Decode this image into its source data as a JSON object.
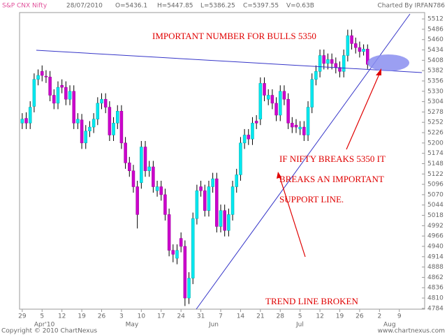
{
  "chart_data": {
    "type": "candlestick",
    "header": {
      "symbol": "S&P CNX Nifty",
      "date": "28/07/2010",
      "open": "O=5436.1",
      "high": "H=5447.85",
      "low": "L=5386.25",
      "close": "C=5397.55",
      "volume": "V=0.63B",
      "credit": "Charted By IRFAN786"
    },
    "annotations": [
      "IMPORTANT NUMBER FOR BULLS 5350",
      "IF NIFTY BREAKS 5350 IT",
      "BREAKS AN IMPORTANT",
      "SUPPORT LINE.",
      "TREND LINE BROKEN"
    ],
    "footer": {
      "left": "Copyright © 2010 ChartNexus",
      "right": "www.chartnexus.com"
    },
    "categories": [
      "29",
      null,
      null,
      null,
      null,
      "5",
      null,
      null,
      null,
      null,
      "12",
      null,
      null,
      null,
      null,
      "19",
      null,
      null,
      null,
      null,
      "26",
      null,
      null,
      null,
      null,
      "3",
      null,
      null,
      null,
      null,
      "10",
      null,
      null,
      null,
      null,
      "17",
      null,
      null,
      null,
      null,
      "24",
      null,
      null,
      null,
      null,
      "31",
      null,
      null,
      null,
      null,
      "7",
      null,
      null,
      null,
      null,
      "14",
      null,
      null,
      null,
      null,
      "21",
      null,
      null,
      null,
      null,
      "28",
      null,
      null,
      null,
      null,
      "5",
      null,
      null,
      null,
      null,
      "12",
      null,
      null,
      null,
      null,
      "19",
      null,
      null,
      null,
      null,
      "26",
      null,
      null,
      null,
      null,
      "2",
      null,
      null,
      null,
      null,
      "9",
      null,
      null,
      null,
      null,
      null
    ],
    "months": [
      null,
      null,
      null,
      "Apr'10",
      null,
      null,
      null,
      null,
      null,
      null,
      null,
      null,
      null,
      null,
      null,
      null,
      null,
      null,
      null,
      null,
      null,
      null,
      null,
      null,
      null,
      null,
      "May",
      null,
      null,
      null,
      null,
      null,
      null,
      null,
      null,
      null,
      null,
      null,
      null,
      null,
      null,
      null,
      null,
      null,
      null,
      null,
      null,
      "Jun",
      null,
      null,
      null,
      null,
      null,
      null,
      null,
      null,
      null,
      null,
      null,
      null,
      null,
      null,
      null,
      null,
      null,
      null,
      null,
      null,
      null,
      "Jul",
      null,
      null,
      null,
      null,
      null,
      null,
      null,
      null,
      null,
      null,
      null,
      null,
      null,
      null,
      null,
      null,
      null,
      null,
      null,
      null,
      null,
      "Aug",
      null,
      null,
      null,
      null,
      null,
      null,
      null,
      null,
      null,
      null
    ],
    "open": [
      5250,
      5262,
      5250,
      5292,
      5360,
      5380,
      5368,
      5366,
      5320,
      5300,
      5345,
      5340,
      5310,
      5330,
      5250,
      5258,
      5200,
      5230,
      5240,
      5260,
      5300,
      5310,
      5290,
      5220,
      5250,
      5280,
      5200,
      5150,
      5130,
      5090,
      5100,
      5190,
      5130,
      5140,
      5080,
      5090,
      5070,
      5020,
      4930,
      4910,
      4960,
      4940,
      4810,
      4860,
      5010,
      5090,
      5080,
      5030,
      5090,
      5110,
      4990,
      5030,
      4980,
      5020,
      5090,
      5120,
      5200,
      5220,
      5210,
      5255,
      5260,
      5350,
      5310,
      5320,
      5300,
      5270,
      5330,
      5310,
      5250,
      5245,
      5235,
      5240,
      5220,
      5290,
      5360,
      5380,
      5420,
      5400,
      5410,
      5400,
      5390,
      5380,
      5420,
      5470,
      5450,
      5440,
      5430,
      5436.1,
      null,
      null,
      null,
      null,
      null,
      null,
      null,
      null,
      null,
      null,
      null,
      null,
      null
    ],
    "high": [
      5275,
      5277,
      5305,
      5375,
      5385,
      5395,
      5383,
      5381,
      5335,
      5355,
      5360,
      5355,
      5345,
      5345,
      5275,
      5273,
      5245,
      5255,
      5275,
      5315,
      5325,
      5325,
      5305,
      5265,
      5295,
      5295,
      5215,
      5165,
      5145,
      5105,
      5205,
      5205,
      5155,
      5155,
      5105,
      5105,
      5085,
      5035,
      4945,
      4945,
      4975,
      4955,
      4875,
      5025,
      5095,
      5105,
      5095,
      5105,
      5125,
      5125,
      5045,
      5045,
      5035,
      5105,
      5135,
      5215,
      5235,
      5235,
      5265,
      5270,
      5365,
      5365,
      5335,
      5335,
      5315,
      5345,
      5345,
      5325,
      5265,
      5260,
      5255,
      5255,
      5305,
      5375,
      5395,
      5435,
      5435,
      5425,
      5425,
      5415,
      5405,
      5435,
      5485,
      5485,
      5465,
      5455,
      5448,
      5447.85,
      null,
      null,
      null,
      null,
      null,
      null,
      null,
      null,
      null,
      null,
      null,
      null,
      null
    ],
    "low": [
      5235,
      5235,
      5235,
      5277,
      5345,
      5355,
      5351,
      5305,
      5285,
      5285,
      5325,
      5295,
      5295,
      5235,
      5235,
      5185,
      5185,
      5215,
      5225,
      5245,
      5285,
      5275,
      5205,
      5205,
      5235,
      5185,
      5135,
      5115,
      5075,
      4985,
      5085,
      5115,
      5115,
      5075,
      5065,
      5055,
      5005,
      4915,
      4900,
      4895,
      4925,
      4790,
      4795,
      4845,
      4995,
      5065,
      5015,
      5015,
      5075,
      4975,
      4975,
      4965,
      4965,
      5005,
      5075,
      5105,
      5185,
      5195,
      5195,
      5235,
      5245,
      5305,
      5295,
      5285,
      5255,
      5255,
      5295,
      5235,
      5225,
      5225,
      5220,
      5205,
      5205,
      5275,
      5345,
      5365,
      5385,
      5385,
      5385,
      5375,
      5365,
      5365,
      5405,
      5435,
      5425,
      5415,
      5420,
      5386.25,
      null,
      null,
      null,
      null,
      null,
      null,
      null,
      null,
      null,
      null,
      null,
      null,
      null
    ],
    "close": [
      5260,
      5250,
      5290,
      5360,
      5370,
      5370,
      5366,
      5320,
      5300,
      5340,
      5340,
      5310,
      5330,
      5250,
      5260,
      5200,
      5230,
      5240,
      5260,
      5300,
      5310,
      5290,
      5220,
      5250,
      5280,
      5200,
      5150,
      5130,
      5090,
      5020,
      5190,
      5130,
      5140,
      5090,
      5090,
      5070,
      5020,
      4930,
      4920,
      4930,
      4940,
      4810,
      4860,
      5010,
      5080,
      5080,
      5030,
      5090,
      5110,
      4990,
      5030,
      4980,
      5020,
      5090,
      5120,
      5200,
      5220,
      5210,
      5250,
      5250,
      5350,
      5320,
      5320,
      5300,
      5270,
      5330,
      5310,
      5250,
      5240,
      5240,
      5240,
      5220,
      5290,
      5360,
      5380,
      5420,
      5400,
      5410,
      5400,
      5390,
      5380,
      5420,
      5470,
      5450,
      5440,
      5430,
      5436,
      5397.55,
      null,
      null,
      null,
      null,
      null,
      null,
      null,
      null,
      null,
      null,
      null,
      null,
      null
    ],
    "up_color": "#00e8f0",
    "down_color": "#cc00cc",
    "wick_color": "#000000",
    "ylim": [
      4782,
      5528
    ],
    "yticks": [
      5512,
      5486,
      5460,
      5434,
      5408,
      5382,
      5356,
      5330,
      5304,
      5278,
      5252,
      5226,
      5200,
      5174,
      5148,
      5122,
      5096,
      5070,
      5044,
      5018,
      4992,
      4966,
      4940,
      4914,
      4888,
      4862,
      4836,
      4810,
      4784
    ],
    "grid": false
  }
}
